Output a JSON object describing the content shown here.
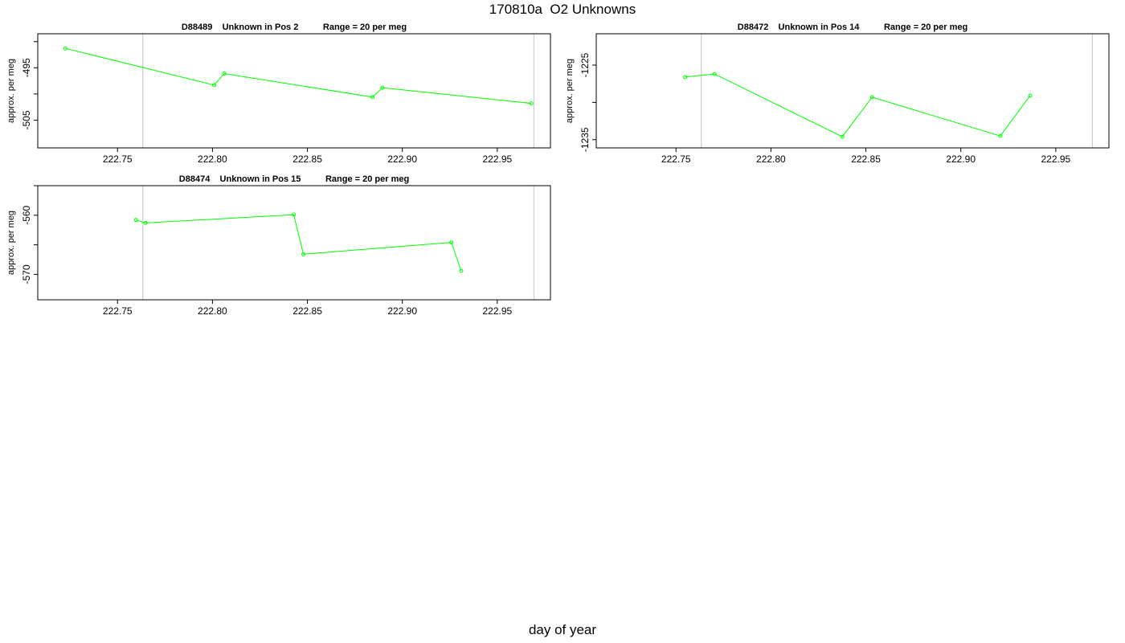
{
  "figure": {
    "title": "170810a  O2 Unknowns",
    "xlabel": "day of year"
  },
  "chart_data": [
    {
      "type": "line",
      "title": "D88489    Unknown in Pos 2          Range = 20 per meg",
      "xlabel": "",
      "ylabel": "approx. per meg",
      "xlim": [
        222.708,
        222.978
      ],
      "ylim": [
        -510.3,
        -488.5
      ],
      "xticks": [
        222.75,
        222.8,
        222.85,
        222.9,
        222.95
      ],
      "xtick_labels": [
        "222.75",
        "222.80",
        "222.85",
        "222.90",
        "222.95"
      ],
      "yticks": [
        -505,
        -500,
        -495,
        -490
      ],
      "ytick_labels": [
        "-505",
        "",
        "-495",
        ""
      ],
      "vlines": [
        222.7633,
        222.9693
      ],
      "line_color": "#00ff00",
      "series": [
        {
          "x": [
            222.7225,
            222.8009,
            222.8062,
            222.8843,
            222.8895,
            222.9679
          ],
          "y": [
            -491.3,
            -498.3,
            -496.1,
            -500.6,
            -498.8,
            -501.8
          ]
        }
      ]
    },
    {
      "type": "line",
      "title": "D88472    Unknown in Pos 14          Range = 20 per meg",
      "xlabel": "",
      "ylabel": "approx. per meg",
      "xlim": [
        222.708,
        222.978
      ],
      "ylim": [
        -1236.1,
        -1220.8
      ],
      "xticks": [
        222.75,
        222.8,
        222.85,
        222.9,
        222.95
      ],
      "xtick_labels": [
        "222.75",
        "222.80",
        "222.85",
        "222.90",
        "222.95"
      ],
      "yticks": [
        -1235,
        -1230,
        -1225
      ],
      "ytick_labels": [
        "-1235",
        "",
        "-1225"
      ],
      "vlines": [
        222.7633,
        222.9693
      ],
      "line_color": "#00ff00",
      "series": [
        {
          "x": [
            222.7548,
            222.7703,
            222.8376,
            222.8533,
            222.9208,
            222.9365
          ],
          "y": [
            -1226.6,
            -1226.2,
            -1234.6,
            -1229.3,
            -1234.5,
            -1229.1
          ]
        }
      ]
    },
    {
      "type": "line",
      "title": "D88474    Unknown in Pos 15          Range = 20 per meg",
      "xlabel": "",
      "ylabel": "approx. per meg",
      "xlim": [
        222.708,
        222.978
      ],
      "ylim": [
        -574.3,
        -555.0
      ],
      "xticks": [
        222.75,
        222.8,
        222.85,
        222.9,
        222.95
      ],
      "xtick_labels": [
        "222.75",
        "222.80",
        "222.85",
        "222.90",
        "222.95"
      ],
      "yticks": [
        -570,
        -565,
        -560,
        -555
      ],
      "ytick_labels": [
        "-570",
        "",
        "-560",
        ""
      ],
      "vlines": [
        222.7633,
        222.9693
      ],
      "line_color": "#00ff00",
      "series": [
        {
          "x": [
            222.7597,
            222.7647,
            222.8428,
            222.8479,
            222.9258,
            222.931
          ],
          "y": [
            -560.8,
            -561.3,
            -559.9,
            -566.6,
            -564.6,
            -569.4
          ]
        }
      ]
    }
  ]
}
